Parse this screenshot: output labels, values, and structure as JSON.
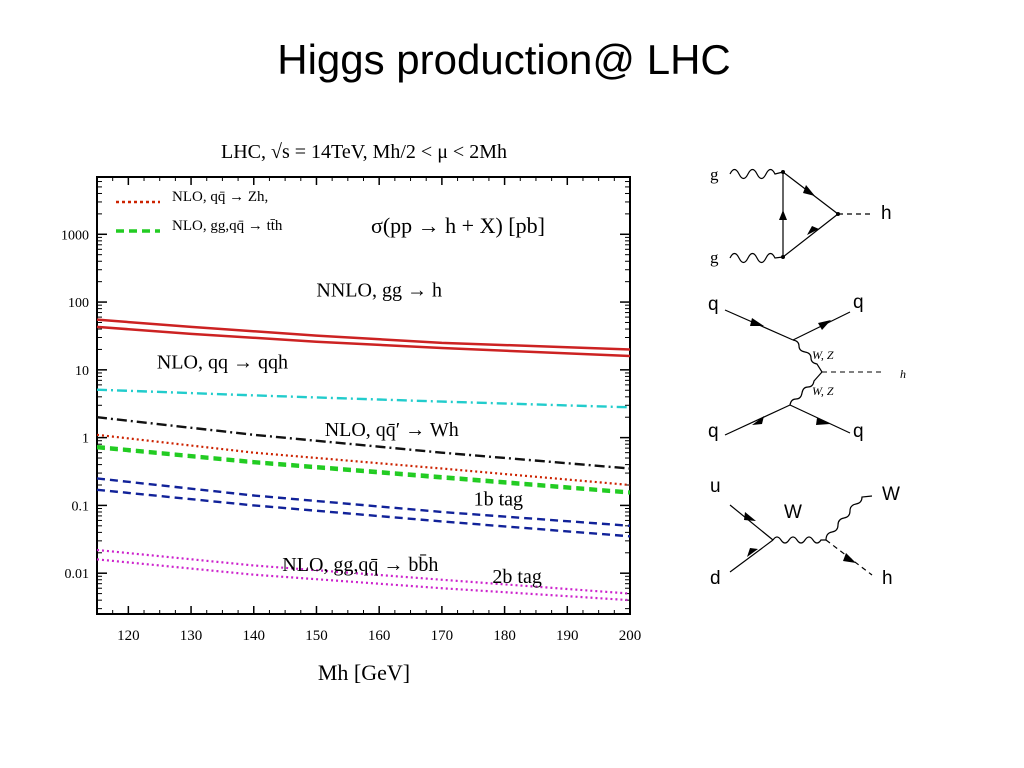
{
  "slide": {
    "title": "Higgs production@ LHC"
  },
  "chart_data": {
    "type": "line",
    "title": "LHC, √s = 14TeV, Mh/2 < μ < 2Mh",
    "subtitle": "σ(pp → h + X) [pb]",
    "xlabel": "Mh [GeV]",
    "ylabel": "",
    "xlim": [
      115,
      200
    ],
    "ylim": [
      0.0025,
      7000
    ],
    "yscale": "log",
    "grid": false,
    "legend_position": "top-left",
    "xticks": [
      "120",
      "130",
      "140",
      "150",
      "160",
      "170",
      "180",
      "190",
      "200"
    ],
    "yticks": [
      "0.01",
      "0.1",
      "1",
      "10",
      "100",
      "1000"
    ],
    "legend": [
      {
        "label": "NLO, qq̄ → Zh,",
        "color": "#cc2200"
      },
      {
        "label": "NLO, gg,qq̄ → tt̄h",
        "color": "#22cc22"
      }
    ],
    "series": [
      {
        "color": "#cc2222",
        "dash": "solid",
        "x": [
          115,
          130,
          150,
          170,
          200
        ],
        "y": [
          55,
          43,
          32,
          25,
          20
        ]
      },
      {
        "color": "#cc2222",
        "dash": "solid",
        "x": [
          115,
          130,
          150,
          170,
          200
        ],
        "y": [
          43,
          34,
          26,
          21,
          16
        ]
      },
      {
        "color": "#22cccc",
        "dash": "dashdot",
        "x": [
          115,
          140,
          170,
          200
        ],
        "y": [
          5.1,
          4.2,
          3.4,
          2.8
        ]
      },
      {
        "color": "#111111",
        "dash": "dashdot",
        "x": [
          115,
          140,
          170,
          200
        ],
        "y": [
          2.0,
          1.1,
          0.6,
          0.35
        ]
      },
      {
        "color": "#cc2200",
        "dash": "dot",
        "x": [
          115,
          140,
          170,
          200
        ],
        "y": [
          1.1,
          0.6,
          0.35,
          0.2
        ]
      },
      {
        "color": "#22cc22",
        "dash": "dash",
        "x": [
          115,
          140,
          170,
          200
        ],
        "y": [
          0.75,
          0.45,
          0.27,
          0.16
        ]
      },
      {
        "color": "#22cc22",
        "dash": "dash",
        "x": [
          115,
          140,
          170,
          200
        ],
        "y": [
          0.7,
          0.42,
          0.25,
          0.15
        ]
      },
      {
        "color": "#112299",
        "dash": "dash",
        "x": [
          115,
          140,
          170,
          200
        ],
        "y": [
          0.25,
          0.14,
          0.08,
          0.05
        ]
      },
      {
        "color": "#112299",
        "dash": "dash",
        "x": [
          115,
          140,
          170,
          200
        ],
        "y": [
          0.17,
          0.1,
          0.058,
          0.035
        ]
      },
      {
        "color": "#cc22cc",
        "dash": "dot",
        "x": [
          115,
          140,
          170,
          200
        ],
        "y": [
          0.022,
          0.013,
          0.008,
          0.005
        ]
      },
      {
        "color": "#cc22cc",
        "dash": "dot",
        "x": [
          115,
          140,
          170,
          200
        ],
        "y": [
          0.016,
          0.0095,
          0.006,
          0.004
        ]
      }
    ],
    "annotations": [
      {
        "text": "NNLO, gg → h",
        "x": 160,
        "y": 120
      },
      {
        "text": "NLO, qq → qqh",
        "x": 135,
        "y": 10.5
      },
      {
        "text": "NLO, qq̄′ → Wh",
        "x": 162,
        "y": 1.05
      },
      {
        "text": "1b tag",
        "x": 179,
        "y": 0.1
      },
      {
        "text": "NLO, gg,qq̄ → bb̄h",
        "x": 157,
        "y": 0.0107
      },
      {
        "text": "2b tag",
        "x": 182,
        "y": 0.0072
      }
    ]
  },
  "diagrams": {
    "d1": {
      "g_top": "g",
      "g_bottom": "g",
      "h": "h"
    },
    "d2": {
      "q_tl": "q",
      "q_tr": "q",
      "wz_top": "W, Z",
      "wz_bottom": "W, Z",
      "h": "h",
      "q_bl": "q",
      "q_br": "q"
    },
    "d3": {
      "u": "u",
      "d": "d",
      "w_mid": "W",
      "w_out": "W",
      "h": "h"
    }
  }
}
